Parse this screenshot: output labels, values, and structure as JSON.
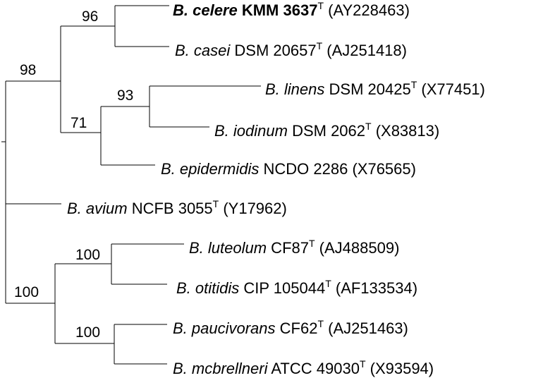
{
  "tree": {
    "bootstrap_values": [
      "96",
      "98",
      "93",
      "71",
      "100",
      "100",
      "100"
    ],
    "taxa": [
      {
        "name": "B. celere",
        "strain": "KMM 3637",
        "type_strain": true,
        "accession": "(AY228463)",
        "highlight": true
      },
      {
        "name": "B. casei",
        "strain": "DSM 20657",
        "type_strain": true,
        "accession": "(AJ251418)",
        "highlight": false
      },
      {
        "name": "B. linens",
        "strain": "DSM 20425",
        "type_strain": true,
        "accession": "(X77451)",
        "highlight": false
      },
      {
        "name": "B. iodinum",
        "strain": "DSM 2062",
        "type_strain": true,
        "accession": "(X83813)",
        "highlight": false
      },
      {
        "name": "B. epidermidis",
        "strain": "NCDO 2286",
        "type_strain": false,
        "accession": "(X76565)",
        "highlight": false
      },
      {
        "name": "B. avium",
        "strain": "NCFB 3055",
        "type_strain": true,
        "accession": "(Y17962)",
        "highlight": false
      },
      {
        "name": "B. luteolum",
        "strain": "CF87",
        "type_strain": true,
        "accession": "(AJ488509)",
        "highlight": false
      },
      {
        "name": "B. otitidis",
        "strain": "CIP 105044",
        "type_strain": true,
        "accession": "(AF133534)",
        "highlight": false
      },
      {
        "name": "B. paucivorans",
        "strain": "CF62",
        "type_strain": true,
        "accession": "(AJ251463)",
        "highlight": false
      },
      {
        "name": "B. mcbrellneri",
        "strain": "ATCC 49030",
        "type_strain": true,
        "accession": "(X93594)",
        "highlight": false
      }
    ],
    "type_strain_mark": "T"
  }
}
